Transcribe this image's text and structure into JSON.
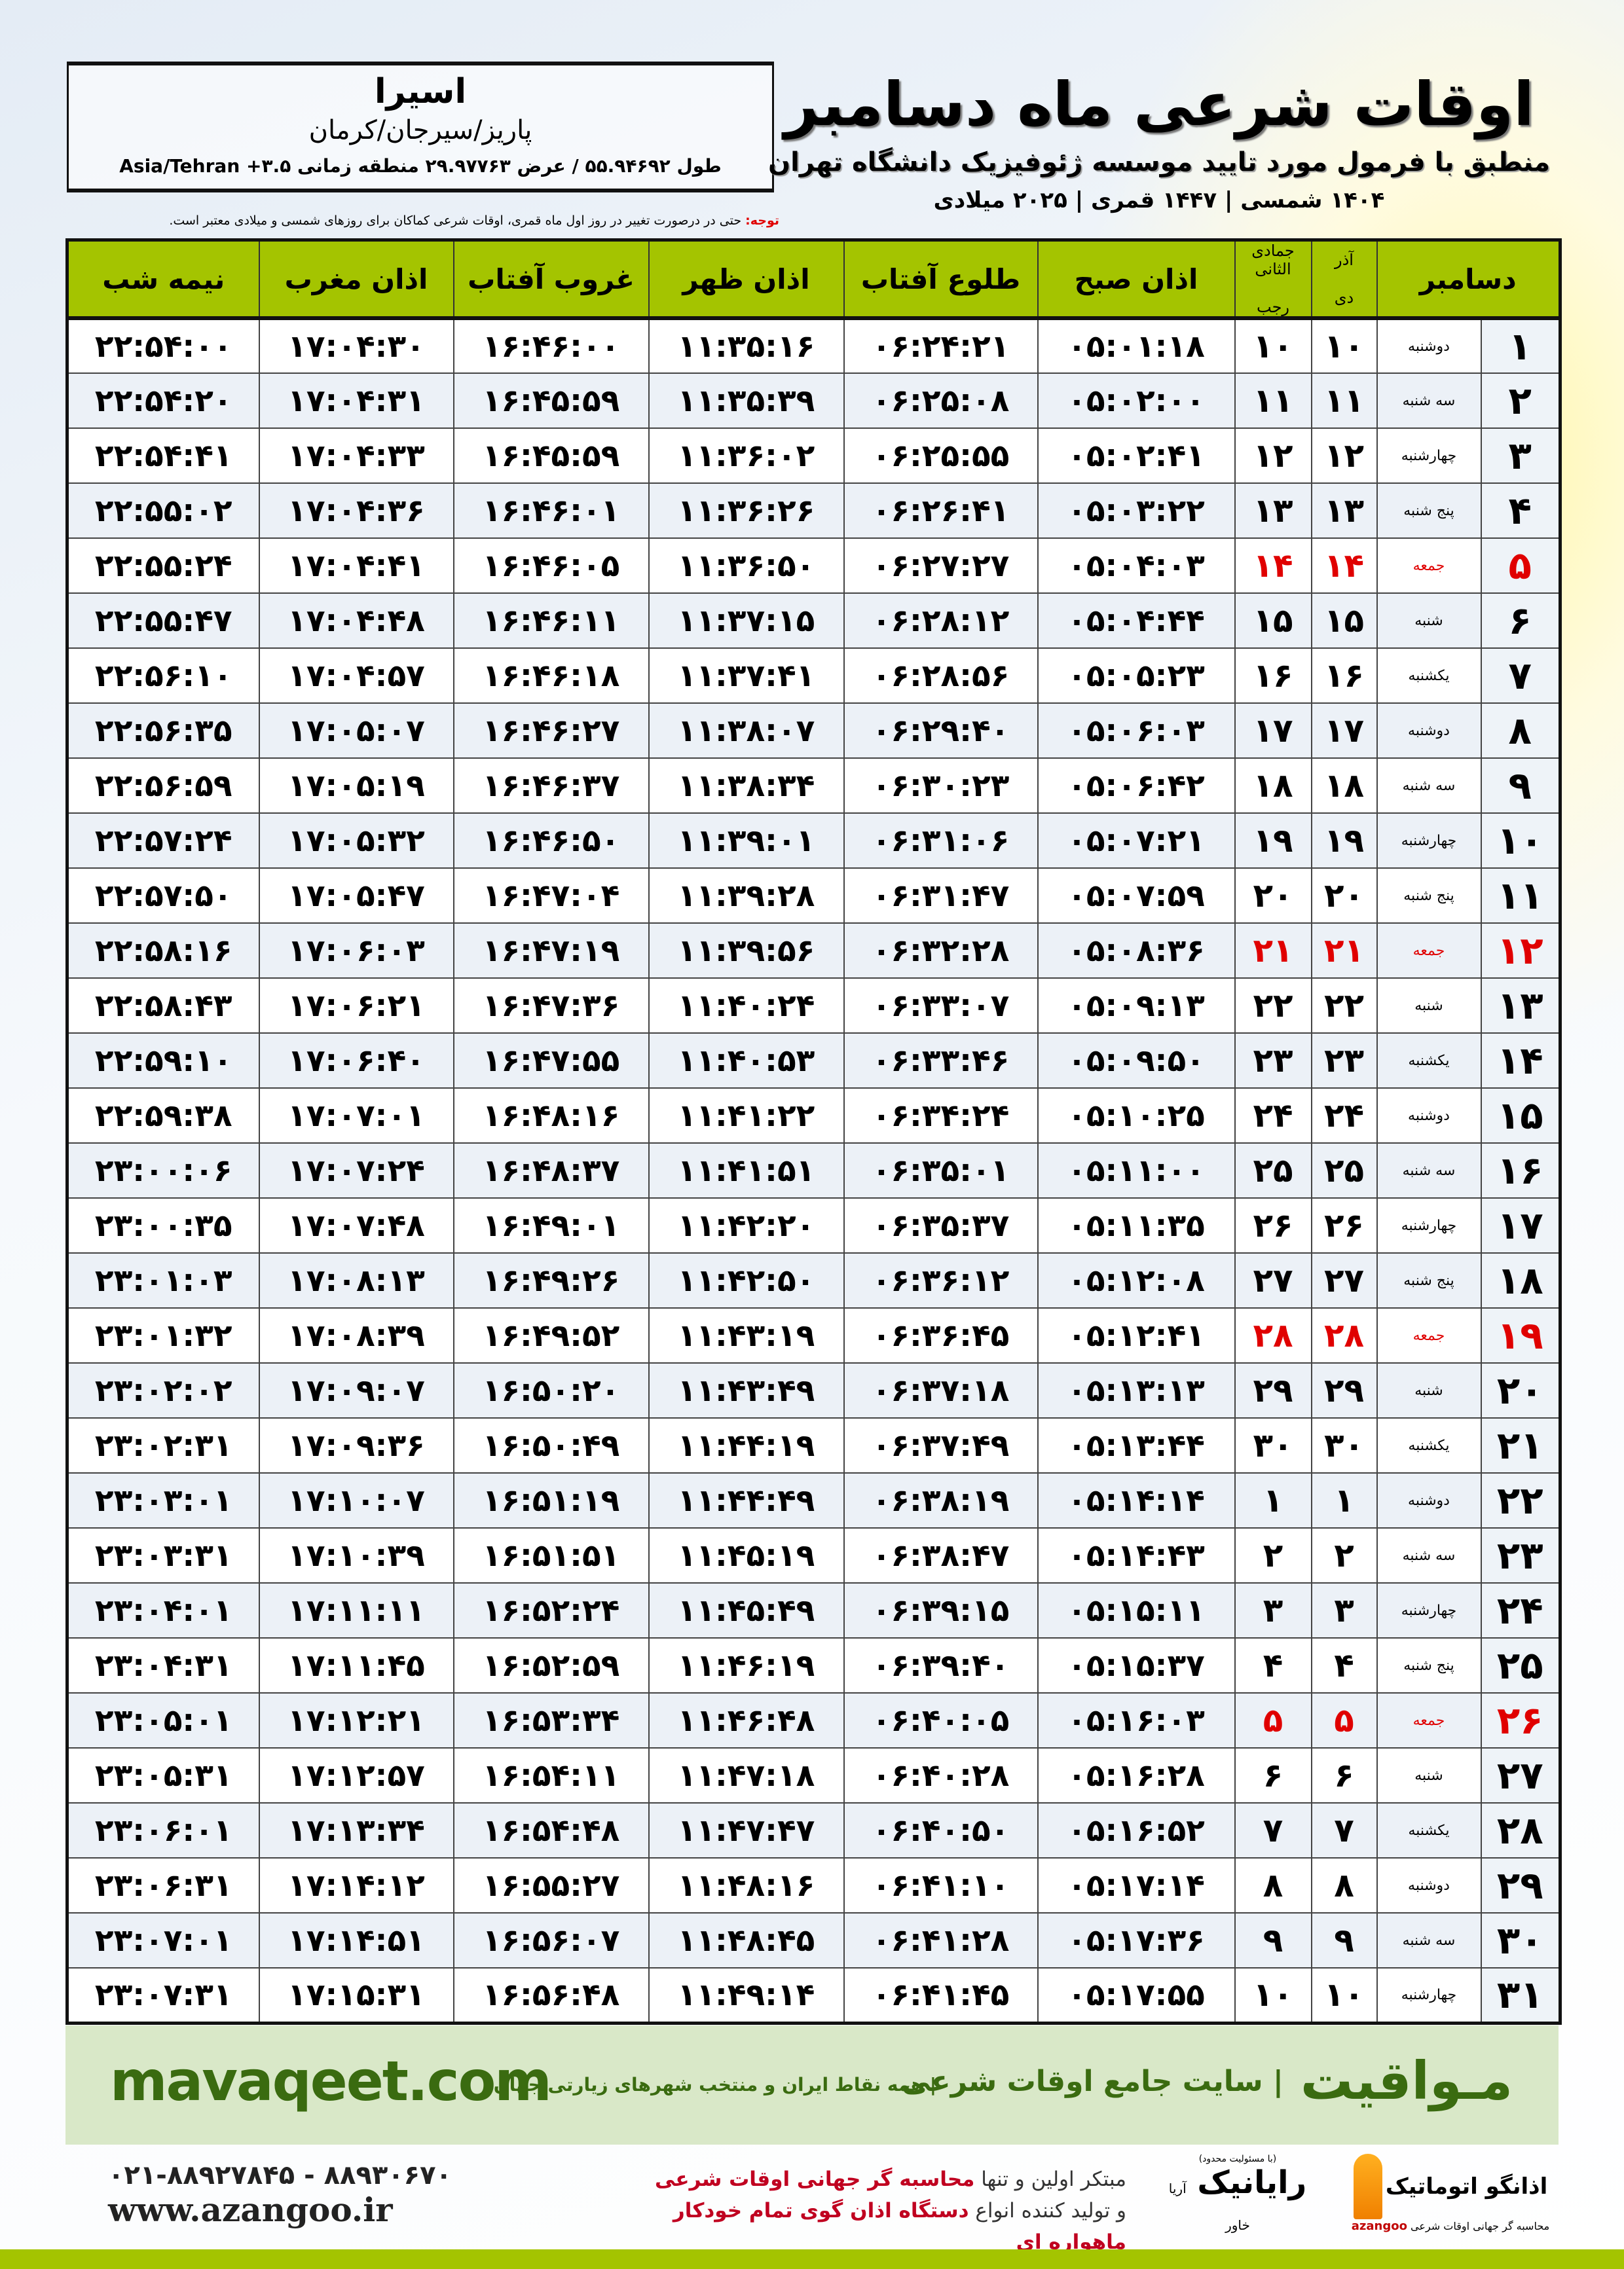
{
  "location": {
    "city": "اسیرا",
    "region": "پاریز/سیرجان/کرمان",
    "coords": "طول ۵۵.۹۴۶۹۲ / عرض ۲۹.۹۷۷۶۳ منطقه زمانی ۳.۵+ Asia/Tehran"
  },
  "header": {
    "title": "اوقات شرعی ماه دسامبر",
    "subtitle": "منطبق با فرمول مورد تایید موسسه ژئوفیزیک دانشگاه تهران",
    "dates": "۱۴۰۴ شمسی | ۱۴۴۷ قمری | ۲۰۲۵ میلادی"
  },
  "note": {
    "label": "توجه:",
    "text": " حتی در درصورت تغییر در روز اول ماه قمری، اوقات شرعی کماکان برای روزهای شمسی و میلادی معتبر است."
  },
  "table": {
    "headers": {
      "day": "دسامبر",
      "shamsi_top": "آذر",
      "shamsi_bottom": "دی",
      "qamari_top": "جمادی الثانی",
      "qamari_bottom": "رجب",
      "fajr": "اذان صبح",
      "sunrise": "طلوع آفتاب",
      "dhuhr": "اذان ظهر",
      "sunset": "غروب آفتاب",
      "maghrib": "اذان مغرب",
      "midnight": "نیمه شب"
    },
    "friday_color": "#e00000",
    "rows": [
      [
        "۱",
        "دوشنبه",
        "۱۰",
        "۱۰",
        "۰۵:۰۱:۱۸",
        "۰۶:۲۴:۲۱",
        "۱۱:۳۵:۱۶",
        "۱۶:۴۶:۰۰",
        "۱۷:۰۴:۳۰",
        "۲۲:۵۴:۰۰"
      ],
      [
        "۲",
        "سه شنبه",
        "۱۱",
        "۱۱",
        "۰۵:۰۲:۰۰",
        "۰۶:۲۵:۰۸",
        "۱۱:۳۵:۳۹",
        "۱۶:۴۵:۵۹",
        "۱۷:۰۴:۳۱",
        "۲۲:۵۴:۲۰"
      ],
      [
        "۳",
        "چهارشنبه",
        "۱۲",
        "۱۲",
        "۰۵:۰۲:۴۱",
        "۰۶:۲۵:۵۵",
        "۱۱:۳۶:۰۲",
        "۱۶:۴۵:۵۹",
        "۱۷:۰۴:۳۳",
        "۲۲:۵۴:۴۱"
      ],
      [
        "۴",
        "پنج شنبه",
        "۱۳",
        "۱۳",
        "۰۵:۰۳:۲۲",
        "۰۶:۲۶:۴۱",
        "۱۱:۳۶:۲۶",
        "۱۶:۴۶:۰۱",
        "۱۷:۰۴:۳۶",
        "۲۲:۵۵:۰۲"
      ],
      [
        "۵",
        "جمعه",
        "۱۴",
        "۱۴",
        "۰۵:۰۴:۰۳",
        "۰۶:۲۷:۲۷",
        "۱۱:۳۶:۵۰",
        "۱۶:۴۶:۰۵",
        "۱۷:۰۴:۴۱",
        "۲۲:۵۵:۲۴"
      ],
      [
        "۶",
        "شنبه",
        "۱۵",
        "۱۵",
        "۰۵:۰۴:۴۴",
        "۰۶:۲۸:۱۲",
        "۱۱:۳۷:۱۵",
        "۱۶:۴۶:۱۱",
        "۱۷:۰۴:۴۸",
        "۲۲:۵۵:۴۷"
      ],
      [
        "۷",
        "یکشنبه",
        "۱۶",
        "۱۶",
        "۰۵:۰۵:۲۳",
        "۰۶:۲۸:۵۶",
        "۱۱:۳۷:۴۱",
        "۱۶:۴۶:۱۸",
        "۱۷:۰۴:۵۷",
        "۲۲:۵۶:۱۰"
      ],
      [
        "۸",
        "دوشنبه",
        "۱۷",
        "۱۷",
        "۰۵:۰۶:۰۳",
        "۰۶:۲۹:۴۰",
        "۱۱:۳۸:۰۷",
        "۱۶:۴۶:۲۷",
        "۱۷:۰۵:۰۷",
        "۲۲:۵۶:۳۵"
      ],
      [
        "۹",
        "سه شنبه",
        "۱۸",
        "۱۸",
        "۰۵:۰۶:۴۲",
        "۰۶:۳۰:۲۳",
        "۱۱:۳۸:۳۴",
        "۱۶:۴۶:۳۷",
        "۱۷:۰۵:۱۹",
        "۲۲:۵۶:۵۹"
      ],
      [
        "۱۰",
        "چهارشنبه",
        "۱۹",
        "۱۹",
        "۰۵:۰۷:۲۱",
        "۰۶:۳۱:۰۶",
        "۱۱:۳۹:۰۱",
        "۱۶:۴۶:۵۰",
        "۱۷:۰۵:۳۲",
        "۲۲:۵۷:۲۴"
      ],
      [
        "۱۱",
        "پنج شنبه",
        "۲۰",
        "۲۰",
        "۰۵:۰۷:۵۹",
        "۰۶:۳۱:۴۷",
        "۱۱:۳۹:۲۸",
        "۱۶:۴۷:۰۴",
        "۱۷:۰۵:۴۷",
        "۲۲:۵۷:۵۰"
      ],
      [
        "۱۲",
        "جمعه",
        "۲۱",
        "۲۱",
        "۰۵:۰۸:۳۶",
        "۰۶:۳۲:۲۸",
        "۱۱:۳۹:۵۶",
        "۱۶:۴۷:۱۹",
        "۱۷:۰۶:۰۳",
        "۲۲:۵۸:۱۶"
      ],
      [
        "۱۳",
        "شنبه",
        "۲۲",
        "۲۲",
        "۰۵:۰۹:۱۳",
        "۰۶:۳۳:۰۷",
        "۱۱:۴۰:۲۴",
        "۱۶:۴۷:۳۶",
        "۱۷:۰۶:۲۱",
        "۲۲:۵۸:۴۳"
      ],
      [
        "۱۴",
        "یکشنبه",
        "۲۳",
        "۲۳",
        "۰۵:۰۹:۵۰",
        "۰۶:۳۳:۴۶",
        "۱۱:۴۰:۵۳",
        "۱۶:۴۷:۵۵",
        "۱۷:۰۶:۴۰",
        "۲۲:۵۹:۱۰"
      ],
      [
        "۱۵",
        "دوشنبه",
        "۲۴",
        "۲۴",
        "۰۵:۱۰:۲۵",
        "۰۶:۳۴:۲۴",
        "۱۱:۴۱:۲۲",
        "۱۶:۴۸:۱۶",
        "۱۷:۰۷:۰۱",
        "۲۲:۵۹:۳۸"
      ],
      [
        "۱۶",
        "سه شنبه",
        "۲۵",
        "۲۵",
        "۰۵:۱۱:۰۰",
        "۰۶:۳۵:۰۱",
        "۱۱:۴۱:۵۱",
        "۱۶:۴۸:۳۷",
        "۱۷:۰۷:۲۴",
        "۲۳:۰۰:۰۶"
      ],
      [
        "۱۷",
        "چهارشنبه",
        "۲۶",
        "۲۶",
        "۰۵:۱۱:۳۵",
        "۰۶:۳۵:۳۷",
        "۱۱:۴۲:۲۰",
        "۱۶:۴۹:۰۱",
        "۱۷:۰۷:۴۸",
        "۲۳:۰۰:۳۵"
      ],
      [
        "۱۸",
        "پنج شنبه",
        "۲۷",
        "۲۷",
        "۰۵:۱۲:۰۸",
        "۰۶:۳۶:۱۲",
        "۱۱:۴۲:۵۰",
        "۱۶:۴۹:۲۶",
        "۱۷:۰۸:۱۳",
        "۲۳:۰۱:۰۳"
      ],
      [
        "۱۹",
        "جمعه",
        "۲۸",
        "۲۸",
        "۰۵:۱۲:۴۱",
        "۰۶:۳۶:۴۵",
        "۱۱:۴۳:۱۹",
        "۱۶:۴۹:۵۲",
        "۱۷:۰۸:۳۹",
        "۲۳:۰۱:۳۲"
      ],
      [
        "۲۰",
        "شنبه",
        "۲۹",
        "۲۹",
        "۰۵:۱۳:۱۳",
        "۰۶:۳۷:۱۸",
        "۱۱:۴۳:۴۹",
        "۱۶:۵۰:۲۰",
        "۱۷:۰۹:۰۷",
        "۲۳:۰۲:۰۲"
      ],
      [
        "۲۱",
        "یکشنبه",
        "۳۰",
        "۳۰",
        "۰۵:۱۳:۴۴",
        "۰۶:۳۷:۴۹",
        "۱۱:۴۴:۱۹",
        "۱۶:۵۰:۴۹",
        "۱۷:۰۹:۳۶",
        "۲۳:۰۲:۳۱"
      ],
      [
        "۲۲",
        "دوشنبه",
        "۱",
        "۱",
        "۰۵:۱۴:۱۴",
        "۰۶:۳۸:۱۹",
        "۱۱:۴۴:۴۹",
        "۱۶:۵۱:۱۹",
        "۱۷:۱۰:۰۷",
        "۲۳:۰۳:۰۱"
      ],
      [
        "۲۳",
        "سه شنبه",
        "۲",
        "۲",
        "۰۵:۱۴:۴۳",
        "۰۶:۳۸:۴۷",
        "۱۱:۴۵:۱۹",
        "۱۶:۵۱:۵۱",
        "۱۷:۱۰:۳۹",
        "۲۳:۰۳:۳۱"
      ],
      [
        "۲۴",
        "چهارشنبه",
        "۳",
        "۳",
        "۰۵:۱۵:۱۱",
        "۰۶:۳۹:۱۵",
        "۱۱:۴۵:۴۹",
        "۱۶:۵۲:۲۴",
        "۱۷:۱۱:۱۱",
        "۲۳:۰۴:۰۱"
      ],
      [
        "۲۵",
        "پنج شنبه",
        "۴",
        "۴",
        "۰۵:۱۵:۳۷",
        "۰۶:۳۹:۴۰",
        "۱۱:۴۶:۱۹",
        "۱۶:۵۲:۵۹",
        "۱۷:۱۱:۴۵",
        "۲۳:۰۴:۳۱"
      ],
      [
        "۲۶",
        "جمعه",
        "۵",
        "۵",
        "۰۵:۱۶:۰۳",
        "۰۶:۴۰:۰۵",
        "۱۱:۴۶:۴۸",
        "۱۶:۵۳:۳۴",
        "۱۷:۱۲:۲۱",
        "۲۳:۰۵:۰۱"
      ],
      [
        "۲۷",
        "شنبه",
        "۶",
        "۶",
        "۰۵:۱۶:۲۸",
        "۰۶:۴۰:۲۸",
        "۱۱:۴۷:۱۸",
        "۱۶:۵۴:۱۱",
        "۱۷:۱۲:۵۷",
        "۲۳:۰۵:۳۱"
      ],
      [
        "۲۸",
        "یکشنبه",
        "۷",
        "۷",
        "۰۵:۱۶:۵۲",
        "۰۶:۴۰:۵۰",
        "۱۱:۴۷:۴۷",
        "۱۶:۵۴:۴۸",
        "۱۷:۱۳:۳۴",
        "۲۳:۰۶:۰۱"
      ],
      [
        "۲۹",
        "دوشنبه",
        "۸",
        "۸",
        "۰۵:۱۷:۱۴",
        "۰۶:۴۱:۱۰",
        "۱۱:۴۸:۱۶",
        "۱۶:۵۵:۲۷",
        "۱۷:۱۴:۱۲",
        "۲۳:۰۶:۳۱"
      ],
      [
        "۳۰",
        "سه شنبه",
        "۹",
        "۹",
        "۰۵:۱۷:۳۶",
        "۰۶:۴۱:۲۸",
        "۱۱:۴۸:۴۵",
        "۱۶:۵۶:۰۷",
        "۱۷:۱۴:۵۱",
        "۲۳:۰۷:۰۱"
      ],
      [
        "۳۱",
        "چهارشنبه",
        "۱۰",
        "۱۰",
        "۰۵:۱۷:۵۵",
        "۰۶:۴۱:۴۵",
        "۱۱:۴۹:۱۴",
        "۱۶:۵۶:۴۸",
        "۱۷:۱۵:۳۱",
        "۲۳:۰۷:۳۱"
      ]
    ]
  },
  "band": {
    "brand": "مـواقیت",
    "slogan": "| سایت جامع اوقات شرعی",
    "slogan2": "| همه نقاط ایران و منتخب شهرهای زیارتی جهان",
    "site": "mavaqeet.com"
  },
  "footer": {
    "logo1": {
      "name": "اذانگو اتوماتیک",
      "tagline": "محاسبه گر جهانی اوقات شرعی",
      "latin": "azangoo"
    },
    "logo2": {
      "name": "رایانیک",
      "sub": "(با مسئولیت محدود)",
      "side": "آریا خاور"
    },
    "promo": {
      "l1a": "مبتکر اولین و تنها ",
      "l1b": "محاسبه گر جهانی اوقات شرعی",
      "l2a": "و تولید کننده انواع ",
      "l2b": "دستگاه اذان گوی تمام خودکار ماهواره ای"
    },
    "phone": "۰۲۱-۸۸۹۲۷۸۴۵ - ۸۸۹۳۰۶۷۰",
    "website": "www.azangoo.ir"
  },
  "colors": {
    "header_green": "#a4c400",
    "band_green": "#d9e8c8",
    "brand_green": "#3a6b10",
    "friday_red": "#e00000"
  }
}
